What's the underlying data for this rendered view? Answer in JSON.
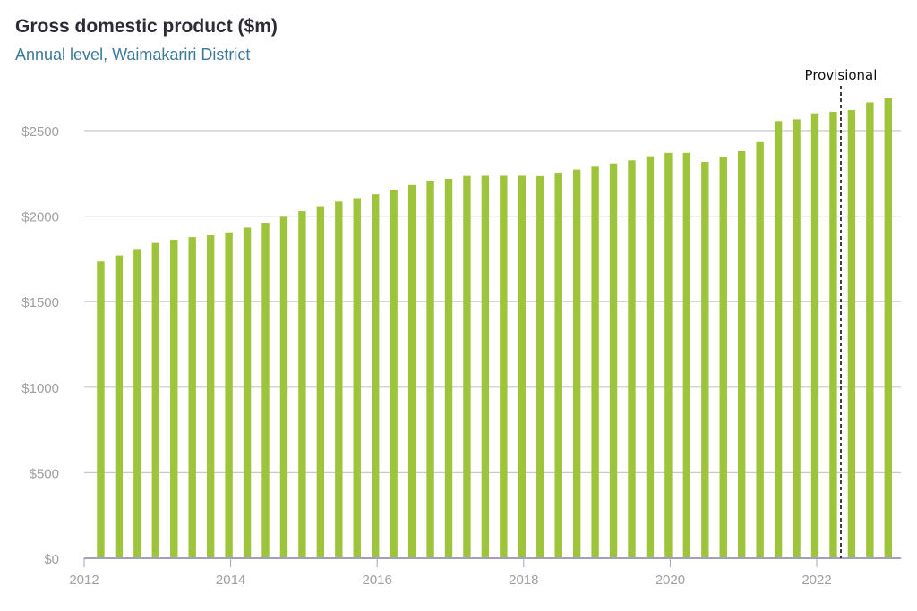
{
  "header": {
    "title": "Gross domestic product ($m)",
    "subtitle": "Annual level, Waimakariri District"
  },
  "colors": {
    "bar": "#9ec43c",
    "grid": "#c8c8c8",
    "axis": "#a0a0c0",
    "tick_text": "#a0a0a0",
    "title": "#2c2c34",
    "subtitle": "#3d7a9a"
  },
  "chart_data": {
    "type": "bar",
    "title": "Gross domestic product ($m)",
    "subtitle": "Annual level, Waimakariri District",
    "xlabel": "",
    "ylabel": "",
    "ylim": [
      0,
      2750
    ],
    "yticks": [
      0,
      500,
      1000,
      1500,
      2000,
      2500
    ],
    "ytick_labels": [
      "$0",
      "$500",
      "$1000",
      "$1500",
      "$2000",
      "$2500"
    ],
    "xlim": [
      2012,
      2023.1
    ],
    "xticks": [
      2012,
      2014,
      2016,
      2018,
      2020,
      2022
    ],
    "xtick_labels": [
      "2012",
      "2014",
      "2016",
      "2018",
      "2020",
      "2022"
    ],
    "x": [
      2012.25,
      2012.5,
      2012.75,
      2013,
      2013.25,
      2013.5,
      2013.75,
      2014,
      2014.25,
      2014.5,
      2014.75,
      2015,
      2015.25,
      2015.5,
      2015.75,
      2016,
      2016.25,
      2016.5,
      2016.75,
      2017,
      2017.25,
      2017.5,
      2017.75,
      2018,
      2018.25,
      2018.5,
      2018.75,
      2019,
      2019.25,
      2019.5,
      2019.75,
      2020,
      2020.25,
      2020.5,
      2020.75,
      2021,
      2021.25,
      2021.5,
      2021.75,
      2022,
      2022.25,
      2022.5,
      2022.75,
      2023
    ],
    "values": [
      1735,
      1770,
      1808,
      1843,
      1862,
      1877,
      1888,
      1905,
      1933,
      1961,
      1996,
      2029,
      2058,
      2085,
      2105,
      2128,
      2155,
      2182,
      2207,
      2218,
      2235,
      2236,
      2236,
      2236,
      2234,
      2254,
      2272,
      2289,
      2308,
      2326,
      2350,
      2370,
      2370,
      2317,
      2343,
      2380,
      2433,
      2556,
      2566,
      2601,
      2610,
      2620,
      2665,
      2690
    ],
    "grid": true,
    "annotations": [
      {
        "text": "Provisional",
        "x": 2022.33,
        "style": "dashed-vertical-line"
      }
    ]
  }
}
